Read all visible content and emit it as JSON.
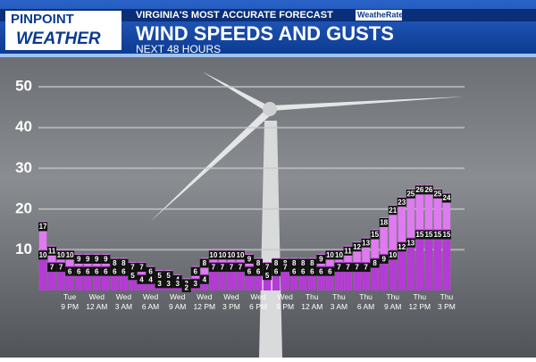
{
  "header": {
    "logo_top": "PINPOINT",
    "logo_bottom": "WEATHER",
    "tagline": "VIRGINIA'S MOST ACCURATE FORECAST",
    "badge": "WeatheRate"
  },
  "chart_data": {
    "type": "bar",
    "title": "WIND SPEEDS AND GUSTS",
    "subtitle": "NEXT 48 HOURS",
    "categories": [
      null,
      null,
      null,
      "Tue 9 PM",
      null,
      null,
      "Wed 12 AM",
      null,
      null,
      "Wed 3 AM",
      null,
      null,
      "Wed 6 AM",
      null,
      null,
      "Wed 9 AM",
      null,
      null,
      "Wed 12 PM",
      null,
      null,
      "Wed 3 PM",
      null,
      null,
      "Wed 6 PM",
      null,
      null,
      "Wed 9 PM",
      null,
      null,
      "Thu 12 AM",
      null,
      null,
      "Thu 3 AM",
      null,
      null,
      "Thu 6 AM",
      null,
      null,
      "Thu 9 AM",
      null,
      null,
      "Thu 12 PM",
      null,
      null,
      "Thu 3 PM"
    ],
    "series": [
      {
        "color": "#e07af0",
        "values": [
          17,
          11,
          10,
          10,
          9,
          9,
          9,
          9,
          8,
          8,
          7,
          7,
          6,
          5,
          5,
          4,
          3,
          6,
          8,
          10,
          10,
          10,
          10,
          9,
          8,
          7,
          8,
          8,
          8,
          8,
          8,
          9,
          10,
          10,
          11,
          12,
          13,
          15,
          18,
          21,
          23,
          25,
          26,
          26,
          25,
          24
        ]
      },
      {
        "color": "#b63ad6",
        "values": [
          10,
          7,
          7,
          6,
          6,
          6,
          6,
          6,
          6,
          6,
          5,
          4,
          4,
          3,
          3,
          3,
          2,
          3,
          4,
          7,
          7,
          7,
          7,
          6,
          6,
          5,
          6,
          7,
          6,
          6,
          6,
          6,
          6,
          7,
          7,
          7,
          7,
          8,
          9,
          10,
          12,
          13,
          15,
          15,
          15,
          15
        ]
      }
    ],
    "ylim": [
      0,
      52
    ],
    "yticks": [
      10,
      20,
      30,
      40,
      50
    ],
    "grid": true
  }
}
